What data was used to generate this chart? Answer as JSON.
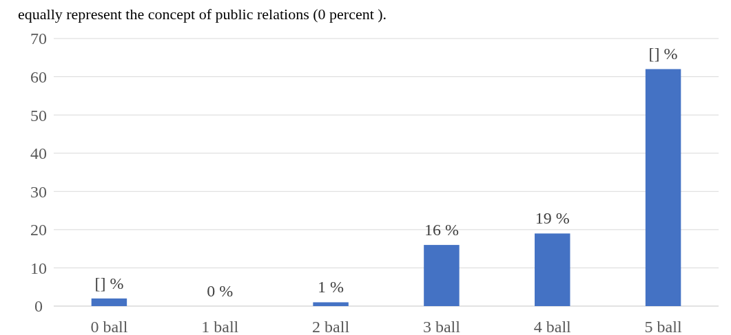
{
  "chart_data": {
    "type": "bar",
    "annotations": [
      "equally represent the concept of public relations (0 percent )."
    ],
    "categories": [
      "0 ball",
      "1 ball",
      "2 ball",
      "3 ball",
      "4 ball",
      "5 ball"
    ],
    "values": [
      2,
      0,
      1,
      16,
      19,
      62
    ],
    "value_labels": [
      "[] %",
      "0 %",
      "1 %",
      "16 %",
      "19 %",
      "[] %"
    ],
    "color": "#4472c4",
    "ylim": [
      0,
      70
    ],
    "yticks": [
      0,
      10,
      20,
      30,
      40,
      50,
      60,
      70
    ],
    "grid": "y"
  }
}
